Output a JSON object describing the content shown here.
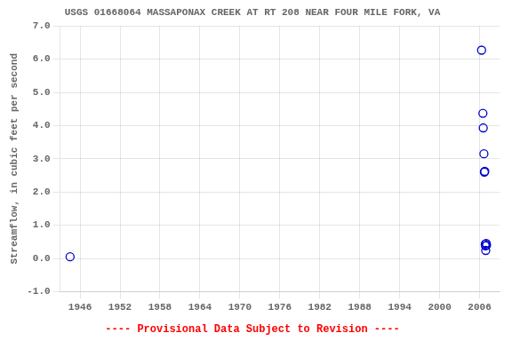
{
  "chart_data": {
    "type": "scatter",
    "title": "USGS 01668064 MASSAPONAX CREEK AT RT 208 NEAR FOUR MILE FORK, VA",
    "y_label": "Streamflow, in cubic feet per second",
    "annotations": [
      {
        "text": "---- Provisional Data Subject to Revision ----",
        "color": "#ff0000"
      }
    ],
    "x": [
      1944.5,
      2006.3,
      2006.5,
      2006.55,
      2006.65,
      2006.72,
      2006.78,
      2006.85,
      2006.88,
      2006.92,
      2007.0,
      2007.05
    ],
    "values": [
      0.05,
      6.27,
      4.37,
      3.93,
      3.15,
      2.6,
      2.62,
      0.43,
      0.38,
      0.24,
      0.45,
      0.4
    ],
    "color": "#0000cc",
    "xlim": [
      1943,
      2009
    ],
    "xticks": [
      1946,
      1952,
      1958,
      1964,
      1970,
      1976,
      1982,
      1988,
      1994,
      2000,
      2006
    ],
    "ylim": [
      -1.0,
      7.0
    ],
    "yticks": [
      {
        "value": -1.0,
        "label": "-1.0"
      },
      {
        "value": 0.0,
        "label": "0.0"
      },
      {
        "value": 1.0,
        "label": "1.0"
      },
      {
        "value": 2.0,
        "label": "2.0"
      },
      {
        "value": 3.0,
        "label": "3.0"
      },
      {
        "value": 4.0,
        "label": "4.0"
      },
      {
        "value": 5.0,
        "label": "5.0"
      },
      {
        "value": 6.0,
        "label": "6.0"
      },
      {
        "value": 7.0,
        "label": "7.0"
      }
    ],
    "grid": true
  }
}
